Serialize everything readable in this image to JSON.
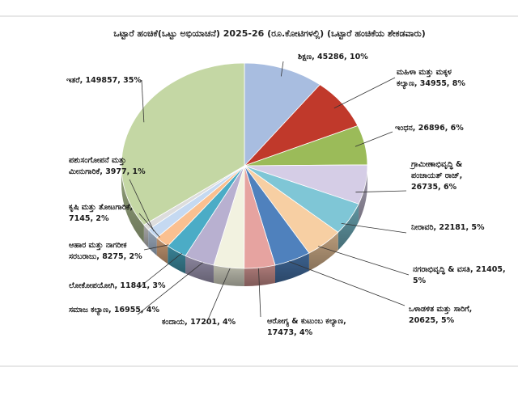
{
  "chart_data": {
    "type": "pie",
    "title": "ಒಟ್ಟಾರೆ ಹಂಚಿಕೆ(ಒಟ್ಟು ಅಭಿಯಾಚನೆ) 2025-26 (ರೂ.ಕೋಟಿಗಳಲ್ಲಿ) (ಒಟ್ಟಾರೆ ಹಂಚಿಕೆಯ ಶೇಕಡವಾರು)",
    "slices": [
      {
        "label": "ಶಿಕ್ಷಣ",
        "value": 45286,
        "percent": "10%",
        "text": [
          "ಶಿಕ್ಷಣ, 45286, 10%"
        ],
        "color": "#a8bde0"
      },
      {
        "label": "ಮಹಿಳಾ ಮತ್ತು ಮಕ್ಕಳ ಕಲ್ಯಾಣ",
        "value": 34955,
        "percent": "8%",
        "text": [
          "ಮಹಿಳಾ ಮತ್ತು ಮಕ್ಕಳ",
          "ಕಲ್ಯಾಣ, 34955, 8%"
        ],
        "color": "#c0392b"
      },
      {
        "label": "ಇಂಧನ",
        "value": 26896,
        "percent": "6%",
        "text": [
          "ಇಂಧನ, 26896, 6%"
        ],
        "color": "#9bbb59"
      },
      {
        "label": "ಗ್ರಾಮೀಣಾಭಿವೃದ್ಧಿ & ಪಂಚಾಯತ್ ರಾಜ್",
        "value": 26735,
        "percent": "6%",
        "text": [
          "ಗ್ರಾಮೀಣಾಭಿವೃದ್ಧಿ &",
          "ಪಂಚಾಯತ್ ರಾಜ್,",
          "26735, 6%"
        ],
        "color": "#d5cde6"
      },
      {
        "label": "ನೀರಾವರಿ",
        "value": 22181,
        "percent": "5%",
        "text": [
          "ನೀರಾವರಿ, 22181, 5%"
        ],
        "color": "#7fc6d6"
      },
      {
        "label": "ನಗರಾಭಿವೃದ್ಧಿ & ವಸತಿ",
        "value": 21405,
        "percent": "5%",
        "text": [
          "ನಗರಾಭಿವೃದ್ಧಿ & ವಸತಿ, 21405,",
          "5%"
        ],
        "color": "#f7cfa3"
      },
      {
        "label": "ಒಳಾಡಳಿತ ಮತ್ತು ಸಾರಿಗೆ",
        "value": 20625,
        "percent": "5%",
        "text": [
          "ಒಳಾಡಳಿತ ಮತ್ತು ಸಾರಿಗೆ,",
          "20625, 5%"
        ],
        "color": "#4f81bd"
      },
      {
        "label": "ಆರೋಗ್ಯ & ಕುಟುಂಬ ಕಲ್ಯಾಣ",
        "value": 17473,
        "percent": "4%",
        "text": [
          "ಆರೋಗ್ಯ & ಕುಟುಂಬ ಕಲ್ಯಾಣ,",
          "17473, 4%"
        ],
        "color": "#e6a3a0"
      },
      {
        "label": "ಕಂದಾಯ",
        "value": 17201,
        "percent": "4%",
        "text": [
          "ಕಂದಾಯ, 17201, 4%"
        ],
        "color": "#f2f2e0"
      },
      {
        "label": "ಸಮಾಜ ಕಲ್ಯಾಣ",
        "value": 16955,
        "percent": "4%",
        "text": [
          "ಸಮಾಜ ಕಲ್ಯಾಣ, 16955, 4%"
        ],
        "color": "#b8b0d0"
      },
      {
        "label": "ಲೋಕೋಪಯೋಗಿ",
        "value": 11841,
        "percent": "3%",
        "text": [
          "ಲೋಕೋಪಯೋಗಿ, 11841, 3%"
        ],
        "color": "#4bacc6"
      },
      {
        "label": "ಆಹಾರ ಮತ್ತು ನಾಗರೀಕ ಸರಬರಾಜು",
        "value": 8275,
        "percent": "2%",
        "text": [
          "ಆಹಾರ ಮತ್ತು ನಾಗರೀಕ",
          "ಸರಬರಾಜು, 8275, 2%"
        ],
        "color": "#fac090"
      },
      {
        "label": "ಕೃಷಿ ಮತ್ತು ತೋಟಗಾರಿಕೆ",
        "value": 7145,
        "percent": "2%",
        "text": [
          "ಕೃಷಿ ಮತ್ತು ತೋಟಗಾರಿಕೆ,",
          "7145, 2%"
        ],
        "color": "#c5d9f1"
      },
      {
        "label": "ಪಶುಸಂಗೋಪನೆ ಮತ್ತು ಮೀನುಗಾರಿಕೆ",
        "value": 3977,
        "percent": "1%",
        "text": [
          "ಪಶುಸಂಗೋಪನೆ ಮತ್ತು",
          "ಮೀನುಗಾರಿಕೆ, 3977, 1%"
        ],
        "color": "#dddddd"
      },
      {
        "label": "ಇತರೆ",
        "value": 149857,
        "percent": "35%",
        "text": [
          "ಇತರೆ, 149857, 35%"
        ],
        "color": "#c4d7a4"
      }
    ]
  }
}
